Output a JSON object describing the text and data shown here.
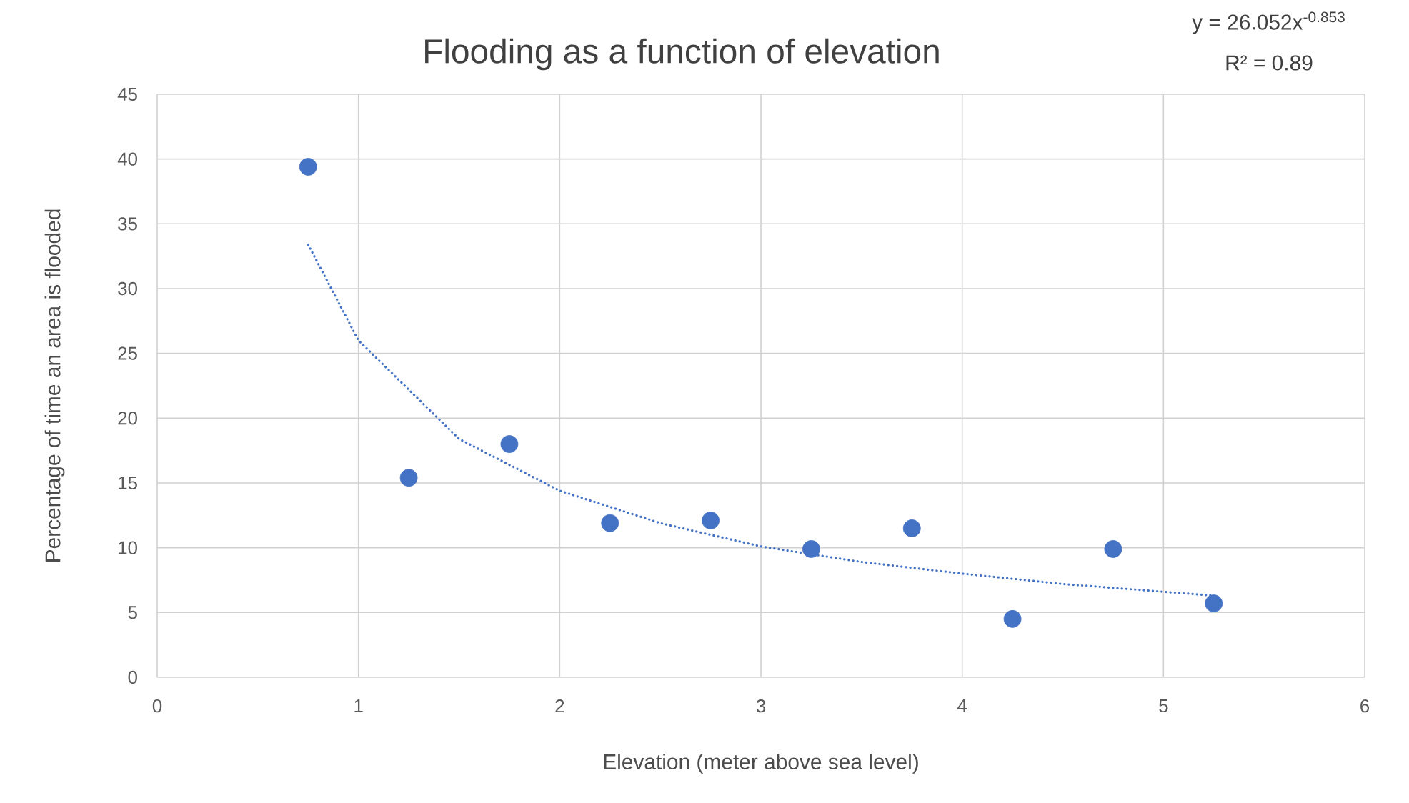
{
  "chart_data": {
    "type": "scatter",
    "title": "Flooding as a function of elevation",
    "xlabel": "Elevation (meter above sea level)",
    "ylabel": "Percentage of time an area is flooded",
    "annotations": [
      "y = 26.052x$^{-0.853}$",
      "R² = 0.89"
    ],
    "series": [
      {
        "color": "#4472c4",
        "marker": "circle",
        "x": [
          0.75,
          1.25,
          1.75,
          2.25,
          2.75,
          3.25,
          3.75,
          4.25,
          4.75,
          5.25
        ],
        "values": [
          39.4,
          15.4,
          18.0,
          11.9,
          12.1,
          9.9,
          11.5,
          4.5,
          9.9,
          5.7
        ]
      },
      {
        "type": "line",
        "color": "#4472c4",
        "marker": "none",
        "line_style": "dotted",
        "x": [
          0.75,
          1,
          1.5,
          2,
          2.5,
          3,
          3.5,
          4,
          4.5,
          5,
          5.25
        ],
        "values": [
          33.4,
          26.0,
          18.4,
          14.4,
          11.9,
          10.1,
          8.9,
          8.0,
          7.2,
          6.6,
          6.3
        ]
      }
    ],
    "xlim": [
      0,
      6
    ],
    "xticks": [
      0,
      1,
      2,
      3,
      4,
      5,
      6
    ],
    "ylim": [
      0,
      45
    ],
    "yticks": [
      0,
      5,
      10,
      15,
      20,
      25,
      30,
      35,
      40,
      45
    ],
    "grid": true
  }
}
